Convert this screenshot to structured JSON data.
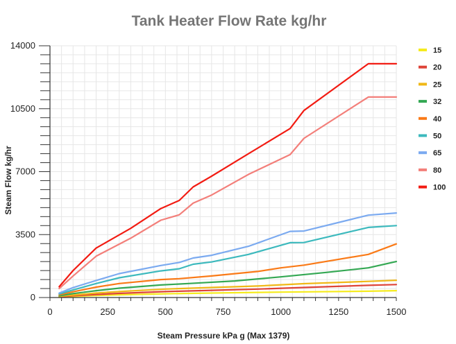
{
  "chart_data": {
    "type": "line",
    "title": "Tank Heater Flow Rate kg/hr",
    "xlabel": "Steam Pressure kPa g (Max 1379)",
    "ylabel": "Steam Flow kg/hr",
    "xlim": [
      0,
      1500
    ],
    "ylim": [
      0,
      14000
    ],
    "x_ticks": [
      0,
      250,
      500,
      750,
      1000,
      1250,
      1500
    ],
    "y_ticks": [
      0,
      3500,
      7000,
      10500,
      14000
    ],
    "x_minor_step": 50,
    "y_minor_step": 500,
    "grid": true,
    "legend_position": "right",
    "series": [
      {
        "name": "15",
        "color": "#f5eb1e",
        "points": [
          [
            40,
            20
          ],
          [
            100,
            60
          ],
          [
            200,
            110
          ],
          [
            300,
            150
          ],
          [
            500,
            210
          ],
          [
            700,
            250
          ],
          [
            1000,
            300
          ],
          [
            1379,
            350
          ],
          [
            1500,
            380
          ]
        ]
      },
      {
        "name": "20",
        "color": "#de4338",
        "points": [
          [
            40,
            40
          ],
          [
            100,
            100
          ],
          [
            200,
            170
          ],
          [
            300,
            230
          ],
          [
            500,
            330
          ],
          [
            700,
            400
          ],
          [
            900,
            470
          ],
          [
            1100,
            560
          ],
          [
            1379,
            680
          ],
          [
            1500,
            720
          ]
        ]
      },
      {
        "name": "25",
        "color": "#f0b817",
        "points": [
          [
            40,
            60
          ],
          [
            100,
            140
          ],
          [
            200,
            250
          ],
          [
            300,
            330
          ],
          [
            500,
            470
          ],
          [
            700,
            560
          ],
          [
            900,
            640
          ],
          [
            1100,
            770
          ],
          [
            1379,
            900
          ],
          [
            1500,
            960
          ]
        ]
      },
      {
        "name": "32",
        "color": "#34a853",
        "points": [
          [
            40,
            100
          ],
          [
            100,
            220
          ],
          [
            200,
            380
          ],
          [
            300,
            520
          ],
          [
            480,
            700
          ],
          [
            600,
            780
          ],
          [
            800,
            920
          ],
          [
            1000,
            1150
          ],
          [
            1200,
            1400
          ],
          [
            1379,
            1650
          ],
          [
            1500,
            2000
          ]
        ]
      },
      {
        "name": "40",
        "color": "#fa7a17",
        "points": [
          [
            40,
            150
          ],
          [
            100,
            320
          ],
          [
            200,
            580
          ],
          [
            300,
            780
          ],
          [
            480,
            1000
          ],
          [
            560,
            1050
          ],
          [
            700,
            1200
          ],
          [
            900,
            1450
          ],
          [
            1000,
            1650
          ],
          [
            1100,
            1800
          ],
          [
            1379,
            2400
          ],
          [
            1500,
            2980
          ]
        ]
      },
      {
        "name": "50",
        "color": "#3cb9bd",
        "points": [
          [
            40,
            200
          ],
          [
            100,
            420
          ],
          [
            200,
            780
          ],
          [
            300,
            1100
          ],
          [
            480,
            1480
          ],
          [
            560,
            1600
          ],
          [
            620,
            1850
          ],
          [
            700,
            1980
          ],
          [
            860,
            2400
          ],
          [
            1040,
            3050
          ],
          [
            1100,
            3060
          ],
          [
            1379,
            3900
          ],
          [
            1500,
            4000
          ]
        ]
      },
      {
        "name": "65",
        "color": "#7baaf0",
        "points": [
          [
            40,
            250
          ],
          [
            100,
            550
          ],
          [
            200,
            950
          ],
          [
            300,
            1330
          ],
          [
            480,
            1780
          ],
          [
            560,
            1950
          ],
          [
            620,
            2200
          ],
          [
            700,
            2350
          ],
          [
            860,
            2850
          ],
          [
            1040,
            3680
          ],
          [
            1100,
            3700
          ],
          [
            1379,
            4580
          ],
          [
            1500,
            4700
          ]
        ]
      },
      {
        "name": "80",
        "color": "#f37f7a",
        "points": [
          [
            40,
            500
          ],
          [
            100,
            1200
          ],
          [
            200,
            2300
          ],
          [
            350,
            3300
          ],
          [
            480,
            4300
          ],
          [
            560,
            4600
          ],
          [
            620,
            5250
          ],
          [
            700,
            5700
          ],
          [
            860,
            6850
          ],
          [
            1040,
            7950
          ],
          [
            1100,
            8850
          ],
          [
            1379,
            11150
          ],
          [
            1500,
            11150
          ]
        ]
      },
      {
        "name": "100",
        "color": "#f21b12",
        "points": [
          [
            40,
            600
          ],
          [
            100,
            1500
          ],
          [
            200,
            2750
          ],
          [
            350,
            3850
          ],
          [
            480,
            4950
          ],
          [
            560,
            5400
          ],
          [
            620,
            6150
          ],
          [
            700,
            6750
          ],
          [
            860,
            8000
          ],
          [
            1040,
            9400
          ],
          [
            1100,
            10400
          ],
          [
            1379,
            13000
          ],
          [
            1500,
            13000
          ]
        ]
      }
    ]
  }
}
